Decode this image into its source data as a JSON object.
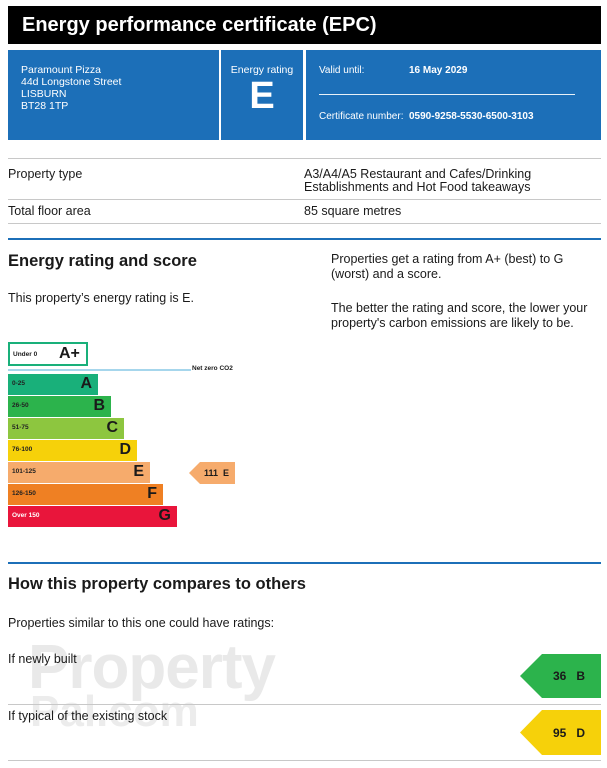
{
  "header": {
    "title": "Energy performance certificate (EPC)"
  },
  "address": [
    "Paramount Pizza",
    "44d Longstone Street",
    "LISBURN",
    "BT28 1TP"
  ],
  "rating_box": {
    "label": "Energy rating",
    "value": "E"
  },
  "validity": {
    "valid_label": "Valid until:",
    "valid_value": "16 May 2029",
    "cert_label": "Certificate number:",
    "cert_value": "0590-9258-5530-6500-3103"
  },
  "property": {
    "type_label": "Property type",
    "type_value_line1": "A3/A4/A5 Restaurant and Cafes/Drinking",
    "type_value_line2": "Establishments and Hot Food takeaways",
    "area_label": "Total floor area",
    "area_value": "85 square metres"
  },
  "rating_section": {
    "heading": "Energy rating and score",
    "statement": "This property’s energy rating is E.",
    "explain1_line1": "Properties get a rating from A+ (best) to G",
    "explain1_line2": "(worst) and a score.",
    "explain2_line1": "The better the rating and score, the lower your",
    "explain2_line2": "property's carbon emissions are likely to be."
  },
  "scale": {
    "aplus": {
      "range": "Under 0",
      "letter": "A+",
      "color": "#19b07a"
    },
    "netzero_label": "Net zero CO2",
    "bands": [
      {
        "range": "0-25",
        "letter": "A",
        "color": "#19b07a"
      },
      {
        "range": "26-50",
        "letter": "B",
        "color": "#2cb34c"
      },
      {
        "range": "51-75",
        "letter": "C",
        "color": "#8dc63f"
      },
      {
        "range": "76-100",
        "letter": "D",
        "color": "#f6d10a"
      },
      {
        "range": "101-125",
        "letter": "E",
        "color": "#f6ab6c"
      },
      {
        "range": "126-150",
        "letter": "F",
        "color": "#ef8023"
      },
      {
        "range": "Over 150",
        "letter": "G",
        "color": "#e9153b"
      }
    ],
    "current": {
      "score": "111",
      "letter": "E",
      "color": "#f6ab6c"
    }
  },
  "compare": {
    "heading": "How this property compares to others",
    "intro": "Properties similar to this one could have ratings:",
    "new_label": "If newly built",
    "new_score": "36",
    "new_letter": "B",
    "new_color": "#2cb34c",
    "stock_label": "If typical of the existing stock",
    "stock_score": "95",
    "stock_letter": "D",
    "stock_color": "#f6d10a"
  },
  "watermark": {
    "line1": "Property",
    "line2": "Pal.com"
  }
}
